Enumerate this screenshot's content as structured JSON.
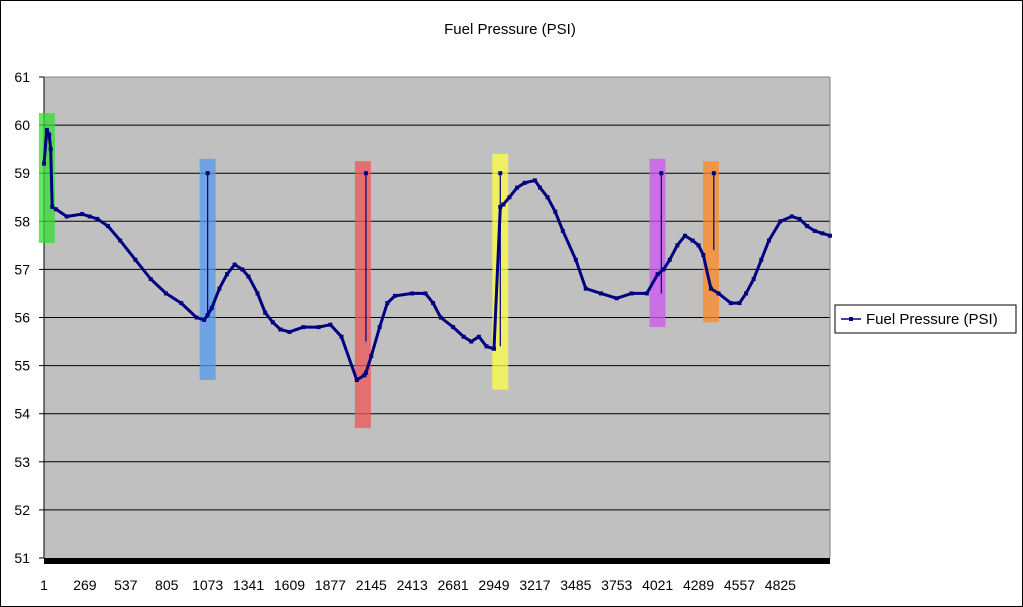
{
  "chart_data": {
    "type": "line",
    "title": "Fuel Pressure (PSI)",
    "xlabel": "",
    "ylabel": "",
    "ylim": [
      51,
      61
    ],
    "xlim": [
      1,
      5150
    ],
    "y_ticks": [
      "51",
      "52",
      "53",
      "54",
      "55",
      "56",
      "57",
      "58",
      "59",
      "60",
      "61"
    ],
    "x_ticks": [
      "1",
      "269",
      "537",
      "805",
      "1073",
      "1341",
      "1609",
      "1877",
      "2145",
      "2413",
      "2681",
      "2949",
      "3217",
      "3485",
      "3753",
      "4021",
      "4289",
      "4557",
      "4825"
    ],
    "grid": "horizontal",
    "legend_position": "right",
    "plot_background": "#c0c0c0",
    "line_color": "#000080",
    "series": [
      {
        "name": "Fuel Pressure (PSI)",
        "x": [
          1,
          20,
          35,
          45,
          55,
          80,
          150,
          250,
          300,
          350,
          420,
          500,
          600,
          700,
          800,
          900,
          1000,
          1050,
          1073,
          1100,
          1150,
          1200,
          1250,
          1300,
          1341,
          1400,
          1450,
          1500,
          1550,
          1609,
          1700,
          1800,
          1877,
          1950,
          2050,
          2100,
          2110,
          2145,
          2200,
          2250,
          2300,
          2413,
          2500,
          2550,
          2600,
          2681,
          2750,
          2800,
          2850,
          2900,
          2949,
          2990,
          3010,
          3050,
          3100,
          3150,
          3217,
          3250,
          3300,
          3350,
          3400,
          3485,
          3550,
          3650,
          3753,
          3850,
          3950,
          4021,
          4060,
          4100,
          4150,
          4200,
          4250,
          4289,
          4320,
          4370,
          4420,
          4500,
          4557,
          4600,
          4650,
          4700,
          4750,
          4825,
          4900,
          4950,
          5000,
          5050,
          5100,
          5150
        ],
        "values": [
          59.2,
          59.9,
          59.8,
          59.5,
          58.3,
          58.25,
          58.1,
          58.15,
          58.1,
          58.05,
          57.9,
          57.6,
          57.2,
          56.8,
          56.5,
          56.3,
          56.0,
          55.95,
          56.05,
          56.2,
          56.6,
          56.9,
          57.1,
          57.0,
          56.85,
          56.5,
          56.1,
          55.9,
          55.75,
          55.7,
          55.8,
          55.8,
          55.85,
          55.6,
          54.7,
          54.8,
          54.85,
          55.2,
          55.8,
          56.3,
          56.45,
          56.5,
          56.5,
          56.3,
          56.0,
          55.8,
          55.6,
          55.5,
          55.6,
          55.4,
          55.35,
          58.3,
          58.35,
          58.5,
          58.7,
          58.8,
          58.85,
          58.7,
          58.5,
          58.2,
          57.8,
          57.2,
          56.6,
          56.5,
          56.4,
          56.5,
          56.5,
          56.9,
          57.0,
          57.2,
          57.5,
          57.7,
          57.6,
          57.5,
          57.3,
          56.6,
          56.5,
          56.3,
          56.3,
          56.5,
          56.8,
          57.2,
          57.6,
          58.0,
          58.1,
          58.05,
          57.9,
          57.8,
          57.75,
          57.7
        ]
      }
    ],
    "highlight_bands": [
      {
        "x_center": 20,
        "y_from": 57.55,
        "y_to": 60.25,
        "color": "#33dd33"
      },
      {
        "x_center": 1073,
        "y_from": 54.7,
        "y_to": 59.3,
        "color": "#5599ee"
      },
      {
        "x_center": 2090,
        "y_from": 53.7,
        "y_to": 59.25,
        "color": "#ee5555"
      },
      {
        "x_center": 2990,
        "y_from": 54.5,
        "y_to": 59.4,
        "color": "#ffff44"
      },
      {
        "x_center": 4020,
        "y_from": 55.8,
        "y_to": 59.3,
        "color": "#cc55ee"
      },
      {
        "x_center": 4370,
        "y_from": 55.9,
        "y_to": 59.25,
        "color": "#ff8822"
      }
    ],
    "spikes": [
      {
        "x": 1073,
        "from": 56.0,
        "to": 59.0
      },
      {
        "x": 2110,
        "from": 55.5,
        "to": 59.0
      },
      {
        "x": 2990,
        "from": 55.4,
        "to": 59.0
      },
      {
        "x": 4045,
        "from": 56.5,
        "to": 59.0
      },
      {
        "x": 4389,
        "from": 57.4,
        "to": 59.0
      }
    ]
  }
}
